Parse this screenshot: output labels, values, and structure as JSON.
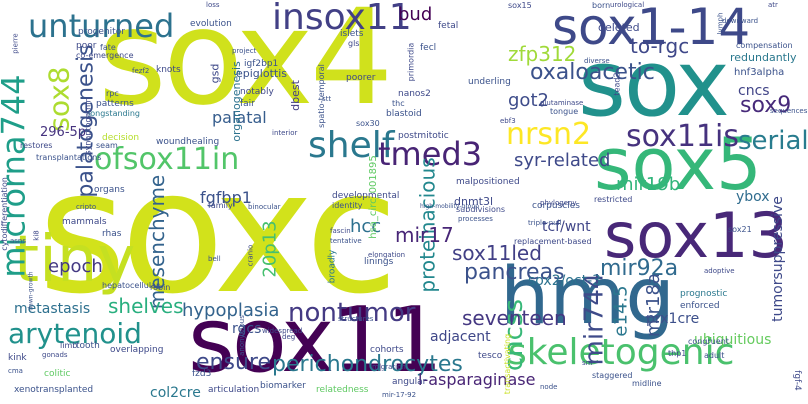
{
  "words": [
    {
      "text": "soxc",
      "color": "#d2e21b"
    },
    {
      "text": "sox4",
      "color": "#d0e11c"
    },
    {
      "text": "sox1-14",
      "color": "#3e4989"
    },
    {
      "text": "sox",
      "color": "#21918c"
    },
    {
      "text": "sox11",
      "color": "#440154"
    },
    {
      "text": "hmg",
      "color": "#31688e"
    },
    {
      "text": "sox5",
      "color": "#35b779"
    },
    {
      "text": "sox13",
      "color": "#482878"
    },
    {
      "text": "tiny",
      "color": "#c5e021"
    },
    {
      "text": "insox11",
      "color": "#424086"
    },
    {
      "text": "unturned",
      "color": "#2c728e"
    },
    {
      "text": "microrna744",
      "color": "#1f9e89"
    },
    {
      "text": "ofsox11in",
      "color": "#52c569"
    },
    {
      "text": "shelf",
      "color": "#2a788e"
    },
    {
      "text": "tmed3",
      "color": "#482475"
    },
    {
      "text": "nrsn2",
      "color": "#fde725"
    },
    {
      "text": "sox11is",
      "color": "#46327e"
    },
    {
      "text": "skeletogenic",
      "color": "#4ac16d"
    },
    {
      "text": "arytenoid",
      "color": "#21918c"
    },
    {
      "text": "palatogenesis",
      "color": "#3b528b"
    },
    {
      "text": "sox8",
      "color": "#addc30"
    },
    {
      "text": "perichondrocytes",
      "color": "#2a788e"
    },
    {
      "text": "ensure",
      "color": "#3e4989"
    },
    {
      "text": "nontumor",
      "color": "#443a83"
    },
    {
      "text": "cncss",
      "color": "#37b878"
    },
    {
      "text": "seventeen",
      "color": "#453882"
    },
    {
      "text": "pancreas",
      "color": "#3b528b"
    },
    {
      "text": "sox11led",
      "color": "#424086"
    },
    {
      "text": "mesenchyme",
      "color": "#33638d"
    },
    {
      "text": "mir744",
      "color": "#3e4a89"
    },
    {
      "text": "mir92a",
      "color": "#306a8e"
    },
    {
      "text": "serial",
      "color": "#287c8e"
    },
    {
      "text": "sox9",
      "color": "#472a7a"
    },
    {
      "text": "oxaloacetic",
      "color": "#3b528b"
    },
    {
      "text": "zfp312",
      "color": "#a0da39"
    },
    {
      "text": "to-rgc",
      "color": "#3f4889"
    },
    {
      "text": "proteinacious",
      "color": "#23888e"
    },
    {
      "text": "hcc",
      "color": "#2d708e"
    },
    {
      "text": "syr-related",
      "color": "#3e4989"
    },
    {
      "text": "mir19b",
      "color": "#31b57b"
    },
    {
      "text": "got2",
      "color": "#3e4c8a"
    },
    {
      "text": "mir17",
      "color": "#482677"
    },
    {
      "text": "epoch",
      "color": "#443983"
    },
    {
      "text": "shelves",
      "color": "#29af7f"
    },
    {
      "text": "hypoplasia",
      "color": "#33638d"
    },
    {
      "text": "fgfbp1",
      "color": "#3b528b"
    },
    {
      "text": "20p13",
      "color": "#46c06f"
    },
    {
      "text": "palatal",
      "color": "#365d8d"
    },
    {
      "text": "bud",
      "color": "#440154"
    },
    {
      "text": "e14.5",
      "color": "#2a778e"
    },
    {
      "text": "mir18a",
      "color": "#3b528b"
    },
    {
      "text": "prx1cre",
      "color": "#3c4f8a"
    },
    {
      "text": "ubiquitious",
      "color": "#65cb5e"
    },
    {
      "text": "tumorsuppressive",
      "color": "#3e4989"
    },
    {
      "text": "ybox",
      "color": "#2f6c8e"
    },
    {
      "text": "tcf/wnt",
      "color": "#404688"
    },
    {
      "text": "sox2/oct-3",
      "color": "#2c728e"
    },
    {
      "text": "adjacent",
      "color": "#3f4788"
    },
    {
      "text": "metastasis",
      "color": "#2d708e"
    },
    {
      "text": "rgcs",
      "color": "#3b528b"
    },
    {
      "text": "l-asparaginase",
      "color": "#482475"
    },
    {
      "text": "col2cre",
      "color": "#2a788e"
    },
    {
      "text": "cncs",
      "color": "#414487"
    },
    {
      "text": "hnf3alpha",
      "color": "#3b528b"
    },
    {
      "text": "dnmt3l",
      "color": "#3e4989"
    },
    {
      "text": "296-5p",
      "color": "#46337f"
    },
    {
      "text": "epiglottis",
      "color": "#3b528b"
    },
    {
      "text": "organogenesis",
      "color": "#2c728e"
    },
    {
      "text": "gsd",
      "color": "#3e4989"
    },
    {
      "text": "igf2bp1",
      "color": "#3b528b"
    },
    {
      "text": "dbest",
      "color": "#433e85"
    },
    {
      "text": "notably",
      "color": "#3f4889"
    },
    {
      "text": "fair",
      "color": "#3b528b"
    },
    {
      "text": "woundhealing",
      "color": "#3b528b"
    },
    {
      "text": "developmental",
      "color": "#3e4989"
    },
    {
      "text": "hsa_circ_001895",
      "color": "#5ec962"
    },
    {
      "text": "blastoid",
      "color": "#3b528b"
    },
    {
      "text": "deleted",
      "color": "#3e4989"
    },
    {
      "text": "redundantly",
      "color": "#2a788e"
    },
    {
      "text": "underling",
      "color": "#3b528b"
    },
    {
      "text": "malpositioned",
      "color": "#3e4989"
    },
    {
      "text": "corpuscles",
      "color": "#3b528b"
    },
    {
      "text": "replacement-based",
      "color": "#3e4989"
    },
    {
      "text": "cohorts",
      "color": "#3e4989"
    },
    {
      "text": "linings",
      "color": "#3b528b"
    },
    {
      "text": "biomarker",
      "color": "#3b528b"
    },
    {
      "text": "broadly",
      "color": "#2a788e"
    },
    {
      "text": "enforced",
      "color": "#3b528b"
    },
    {
      "text": "prognostic",
      "color": "#2a788e"
    },
    {
      "text": "transactivating",
      "color": "#c8e020"
    },
    {
      "text": "fgf-4",
      "color": "#3e4989"
    },
    {
      "text": "knots",
      "color": "#3e4989"
    },
    {
      "text": "evolution",
      "color": "#3b528b"
    },
    {
      "text": "progenitor",
      "color": "#3b528b"
    },
    {
      "text": "poor",
      "color": "#3e4989"
    },
    {
      "text": "fate",
      "color": "#3b528b"
    },
    {
      "text": "co-emergence",
      "color": "#3e4989"
    },
    {
      "text": "rpc",
      "color": "#3b528b"
    },
    {
      "text": "patterns",
      "color": "#3b528b"
    },
    {
      "text": "longstanding",
      "color": "#2a788e"
    },
    {
      "text": "synaptogamin",
      "color": "#3e4989"
    },
    {
      "text": "decision",
      "color": "#b5de2b"
    },
    {
      "text": "seam",
      "color": "#3b528b"
    },
    {
      "text": "restores",
      "color": "#3e4989"
    },
    {
      "text": "transplantations",
      "color": "#3b528b"
    },
    {
      "text": "organs",
      "color": "#3b528b"
    },
    {
      "text": "mammals",
      "color": "#3e4989"
    },
    {
      "text": "rhas",
      "color": "#3b528b"
    },
    {
      "text": "tooth",
      "color": "#3b528b"
    },
    {
      "text": "limb",
      "color": "#3e4989"
    },
    {
      "text": "kink",
      "color": "#3e4989"
    },
    {
      "text": "colitic",
      "color": "#5ec962"
    },
    {
      "text": "xenotransplanted",
      "color": "#3b528b"
    },
    {
      "text": "overlapping",
      "color": "#3e4989"
    },
    {
      "text": "hepatocellular",
      "color": "#3b528b"
    },
    {
      "text": "robin",
      "color": "#3e4989"
    },
    {
      "text": "fzd3",
      "color": "#3b528b"
    },
    {
      "text": "articulation",
      "color": "#3e4989"
    },
    {
      "text": "relatedness",
      "color": "#5ec962"
    },
    {
      "text": "mir-17-92",
      "color": "#3b528b"
    },
    {
      "text": "angular",
      "color": "#3e4989"
    },
    {
      "text": "staggered",
      "color": "#3b528b"
    },
    {
      "text": "midline",
      "color": "#3b528b"
    },
    {
      "text": "tesco",
      "color": "#3e4989"
    },
    {
      "text": "thp1",
      "color": "#3e4989"
    },
    {
      "text": "adult",
      "color": "#3b528b"
    },
    {
      "text": "congruent",
      "color": "#3b528b"
    },
    {
      "text": "adoptive",
      "color": "#3e4989"
    },
    {
      "text": "sox21",
      "color": "#3b528b"
    },
    {
      "text": "phylogeny",
      "color": "#3e4989"
    },
    {
      "text": "triple-null",
      "color": "#3b528b"
    },
    {
      "text": "subdivisions",
      "color": "#3e4989"
    },
    {
      "text": "processes",
      "color": "#3b528b"
    },
    {
      "text": "elongation",
      "color": "#3e4989"
    },
    {
      "text": "tentative",
      "color": "#3b528b"
    },
    {
      "text": "fascin",
      "color": "#3e4989"
    },
    {
      "text": "identity",
      "color": "#3b528b"
    },
    {
      "text": "postmitotic",
      "color": "#3e4989"
    },
    {
      "text": "sox30",
      "color": "#3b528b"
    },
    {
      "text": "thc",
      "color": "#3b528b"
    },
    {
      "text": "nanos2",
      "color": "#3e4989"
    },
    {
      "text": "poorer",
      "color": "#3e4989"
    },
    {
      "text": "spatio-temporal",
      "color": "#3b528b"
    },
    {
      "text": "primordia",
      "color": "#3e4989"
    },
    {
      "text": "fecl",
      "color": "#3b528b"
    },
    {
      "text": "fetal",
      "color": "#3e4989"
    },
    {
      "text": "islets",
      "color": "#3b528b"
    },
    {
      "text": "gls",
      "color": "#3e4989"
    },
    {
      "text": "project",
      "color": "#3b528b"
    },
    {
      "text": "sox15",
      "color": "#3e4989"
    },
    {
      "text": "born",
      "color": "#3b528b"
    },
    {
      "text": "urological",
      "color": "#3e4989"
    },
    {
      "text": "downward",
      "color": "#3b528b"
    },
    {
      "text": "atr",
      "color": "#3e4989"
    },
    {
      "text": "diverse",
      "color": "#3b528b"
    },
    {
      "text": "tead2",
      "color": "#3e4989"
    },
    {
      "text": "compensation",
      "color": "#3b528b"
    },
    {
      "text": "glutaminase",
      "color": "#3e4989"
    },
    {
      "text": "tongue",
      "color": "#3b528b"
    },
    {
      "text": "ebf3",
      "color": "#3e4989"
    },
    {
      "text": "sequences",
      "color": "#3b528b"
    },
    {
      "text": "restricted",
      "color": "#3e4989"
    },
    {
      "text": "high-mobility-group",
      "color": "#3b528b"
    },
    {
      "text": "interior",
      "color": "#3e4989"
    },
    {
      "text": "binocular",
      "color": "#3b528b"
    },
    {
      "text": "cytodifferentiation",
      "color": "#3e4989"
    },
    {
      "text": "asns",
      "color": "#3b528b"
    },
    {
      "text": "ki8",
      "color": "#3e4989"
    },
    {
      "text": "cripto",
      "color": "#3b528b"
    },
    {
      "text": "family",
      "color": "#3e4989"
    },
    {
      "text": "bell",
      "color": "#3b528b"
    },
    {
      "text": "cranio",
      "color": "#3e4989"
    },
    {
      "text": "dawn-growth",
      "color": "#3b528b"
    },
    {
      "text": "gonads",
      "color": "#3e4989"
    },
    {
      "text": "cma",
      "color": "#3b528b"
    },
    {
      "text": "widespread",
      "color": "#3e4989"
    },
    {
      "text": "structures",
      "color": "#3b528b"
    },
    {
      "text": "deg",
      "color": "#3e4989"
    },
    {
      "text": "anonymous",
      "color": "#3b528b"
    },
    {
      "text": "migration",
      "color": "#3e4989"
    },
    {
      "text": "node",
      "color": "#3b528b"
    },
    {
      "text": "loss",
      "color": "#3e4989"
    },
    {
      "text": "fezf2",
      "color": "#3b528b"
    },
    {
      "text": "pierre",
      "color": "#3e4989"
    },
    {
      "text": "stt",
      "color": "#3b528b"
    },
    {
      "text": "sm",
      "color": "#3e4989"
    },
    {
      "text": "lymph",
      "color": "#3b528b"
    }
  ]
}
